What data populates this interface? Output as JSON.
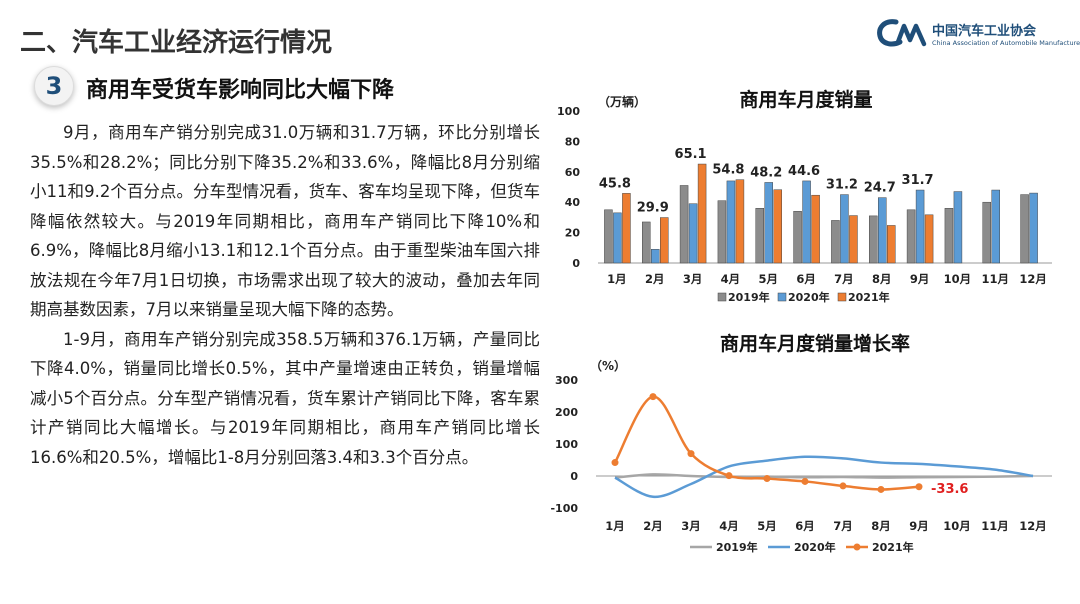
{
  "header": {
    "title": "二、汽车工业经济运行情况",
    "logo_cn": "中国汽车工业协会",
    "logo_en": "China Association of Automobile Manufacturers"
  },
  "section": {
    "number": "3",
    "title": "商用车受货车影响同比大幅下降"
  },
  "body": {
    "paragraph1": "9月，商用车产销分别完成31.0万辆和31.7万辆，环比分别增长35.5%和28.2%；同比分别下降35.2%和33.6%，降幅比8月分别缩小11和9.2个百分点。分车型情况看，货车、客车均呈现下降，但货车降幅依然较大。与2019年同期相比，商用车产销同比下降10%和6.9%，降幅比8月缩小13.1和12.1个百分点。由于重型柴油车国六排放法规在今年7月1日切换，市场需求出现了较大的波动，叠加去年同期高基数因素，7月以来销量呈现大幅下降的态势。",
    "paragraph2": "1-9月，商用车产销分别完成358.5万辆和376.1万辆，产量同比下降4.0%，销量同比增长0.5%，其中产量增速由正转负，销量增幅减小5个百分点。分车型产销情况看，货车累计产销同比下降，客车累计产销同比大幅增长。与2019年同期相比，商用车产销同比增长16.6%和20.5%，增幅比1-8月分别回落3.4和3.3个百分点。"
  },
  "chart_data": [
    {
      "type": "bar",
      "title": "商用车月度销量",
      "ylabel": "（万辆）",
      "ylim": [
        0,
        100
      ],
      "yticks": [
        0,
        20,
        40,
        60,
        80,
        100
      ],
      "categories": [
        "1月",
        "2月",
        "3月",
        "4月",
        "5月",
        "6月",
        "7月",
        "8月",
        "9月",
        "10月",
        "11月",
        "12月"
      ],
      "series": [
        {
          "name": "2019年",
          "color": "#8c8c8c",
          "values": [
            35,
            27,
            51,
            41,
            36,
            34,
            28,
            31,
            35,
            36,
            40,
            45
          ]
        },
        {
          "name": "2020年",
          "color": "#5b9bd5",
          "values": [
            33,
            9,
            39,
            54,
            53,
            54,
            45,
            43,
            48,
            47,
            48,
            46
          ]
        },
        {
          "name": "2021年",
          "color": "#ed7d31",
          "values": [
            45.8,
            29.9,
            65.1,
            54.8,
            48.2,
            44.6,
            31.2,
            24.7,
            31.7,
            null,
            null,
            null
          ]
        }
      ],
      "data_labels": [
        "45.8",
        "29.9",
        "65.1",
        "54.8",
        "48.2",
        "44.6",
        "31.2",
        "24.7",
        "31.7"
      ],
      "legend_position": "bottom"
    },
    {
      "type": "line",
      "title": "商用车月度销量增长率",
      "ylabel": "（%）",
      "ylim": [
        -100,
        300
      ],
      "yticks": [
        -100,
        0,
        100,
        200,
        300
      ],
      "categories": [
        "1月",
        "2月",
        "3月",
        "4月",
        "5月",
        "6月",
        "7月",
        "8月",
        "9月",
        "10月",
        "11月",
        "12月"
      ],
      "series": [
        {
          "name": "2019年",
          "color": "#a6a6a6",
          "values": [
            -5,
            5,
            0,
            -3,
            -2,
            -4,
            -3,
            -5,
            -4,
            -3,
            -2,
            0
          ]
        },
        {
          "name": "2020年",
          "color": "#5b9bd5",
          "values": [
            -5,
            -65,
            -25,
            30,
            48,
            60,
            55,
            42,
            38,
            30,
            20,
            0
          ]
        },
        {
          "name": "2021年",
          "color": "#ed7d31",
          "values": [
            42,
            248,
            70,
            1,
            -8,
            -17,
            -31,
            -42,
            -33.6,
            null,
            null,
            null
          ]
        }
      ],
      "annotation": "-33.6",
      "legend_position": "bottom"
    }
  ]
}
